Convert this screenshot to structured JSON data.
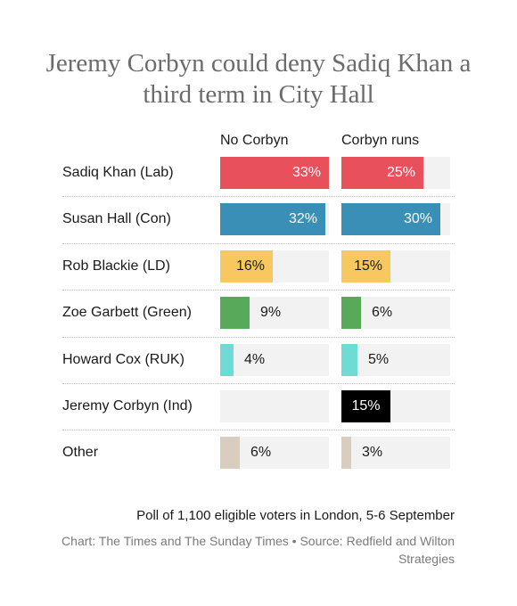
{
  "title": "Jeremy Corbyn could deny Sadiq Khan a third term in City Hall",
  "footer": {
    "note": "Poll of 1,100 eligible voters in London, 5-6 September",
    "source": "Chart: The Times and The Sunday Times • Source: Redfield and Wilton Strategies"
  },
  "chart_data": {
    "type": "bar",
    "title": "Jeremy Corbyn could deny Sadiq Khan a third term in City Hall",
    "categories": [
      "Sadiq Khan (Lab)",
      "Susan Hall (Con)",
      "Rob Blackie (LD)",
      "Zoe Garbett (Green)",
      "Howard Cox (RUK)",
      "Jeremy Corbyn (Ind)",
      "Other"
    ],
    "series": [
      {
        "name": "No Corbyn",
        "values": [
          33,
          32,
          16,
          9,
          4,
          null,
          6
        ]
      },
      {
        "name": "Corbyn runs",
        "values": [
          25,
          30,
          15,
          6,
          5,
          15,
          3
        ]
      }
    ],
    "unit": "%",
    "colors": [
      "#e8505b",
      "#3a8fb7",
      "#f6c85f",
      "#59a95a",
      "#6fdbd5",
      "#000000",
      "#d9cdc0"
    ],
    "xlim": [
      0,
      33
    ]
  }
}
